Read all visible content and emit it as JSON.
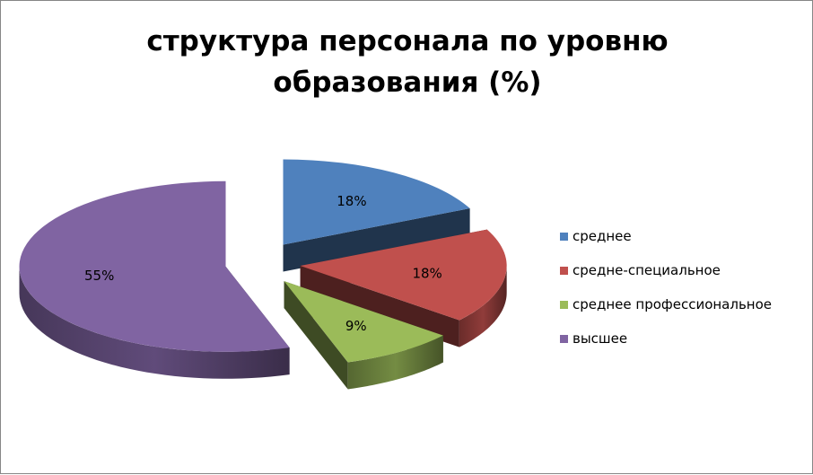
{
  "chart_data": {
    "type": "pie",
    "title_lines": [
      "структура персонала по уровню",
      "образования (%)"
    ],
    "categories": [
      "среднее",
      "средне-специальное",
      "среднее профессиональное",
      "высшее"
    ],
    "values": [
      18,
      18,
      9,
      55
    ],
    "data_labels": [
      "18%",
      "18%",
      "9%",
      "55%"
    ],
    "colors": [
      "#4f81bd",
      "#c0504d",
      "#9bbb59",
      "#8064a2"
    ],
    "legend_position": "right",
    "exploded": true,
    "three_d": true
  }
}
